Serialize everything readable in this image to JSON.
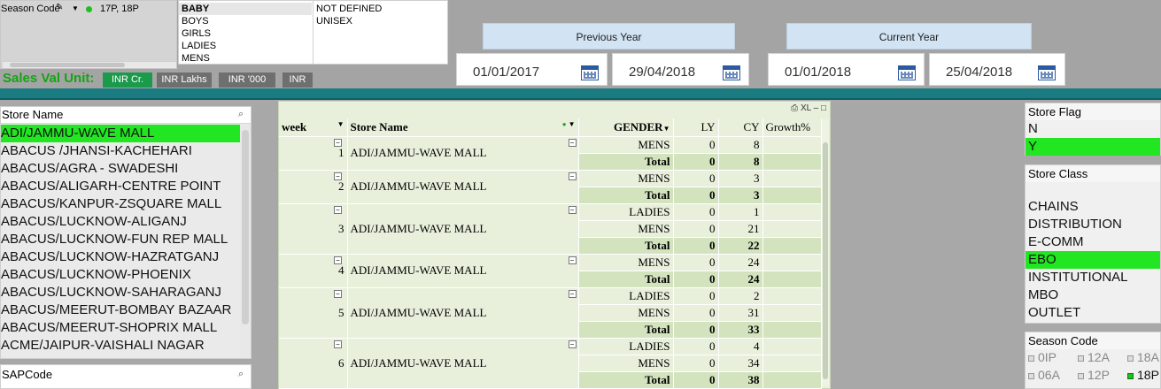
{
  "season": {
    "label": "Season Code",
    "icons": [
      "eraser-icon",
      "dropdown-icon"
    ],
    "value": "17P, 18P"
  },
  "gender_filter": {
    "col1": [
      {
        "label": "BABY",
        "selected": true
      },
      {
        "label": "BOYS",
        "selected": false
      },
      {
        "label": "GIRLS",
        "selected": false
      },
      {
        "label": "LADIES",
        "selected": false
      },
      {
        "label": "MENS",
        "selected": false
      }
    ],
    "col2": [
      {
        "label": "NOT DEFINED",
        "selected": false
      },
      {
        "label": "UNISEX",
        "selected": false
      }
    ]
  },
  "sales_unit": {
    "label": "Sales Val Unit:",
    "options": [
      {
        "label": "INR Cr.",
        "active": true
      },
      {
        "label": "INR Lakhs",
        "active": false
      },
      {
        "label": "INR '000",
        "active": false
      },
      {
        "label": "INR",
        "active": false
      }
    ]
  },
  "previous_year": {
    "label": "Previous Year",
    "from": "01/01/2017",
    "to": "29/04/2018"
  },
  "current_year": {
    "label": "Current Year",
    "from": "01/01/2018",
    "to": "25/04/2018"
  },
  "store_name_list": {
    "title": "Store Name",
    "items": [
      {
        "label": "ADI/JAMMU-WAVE MALL",
        "selected": true
      },
      {
        "label": "ABACUS /JHANSI-KACHEHARI",
        "selected": false
      },
      {
        "label": "ABACUS/AGRA - SWADESHI",
        "selected": false
      },
      {
        "label": "ABACUS/ALIGARH-CENTRE POINT",
        "selected": false
      },
      {
        "label": "ABACUS/KANPUR-ZSQUARE MALL",
        "selected": false
      },
      {
        "label": "ABACUS/LUCKNOW-ALIGANJ",
        "selected": false
      },
      {
        "label": "ABACUS/LUCKNOW-FUN REP MALL",
        "selected": false
      },
      {
        "label": "ABACUS/LUCKNOW-HAZRATGANJ",
        "selected": false
      },
      {
        "label": "ABACUS/LUCKNOW-PHOENIX",
        "selected": false
      },
      {
        "label": "ABACUS/LUCKNOW-SAHARAGANJ",
        "selected": false
      },
      {
        "label": "ABACUS/MEERUT-BOMBAY BAZAAR",
        "selected": false
      },
      {
        "label": "ABACUS/MEERUT-SHOPRIX MALL",
        "selected": false
      },
      {
        "label": "ACME/JAIPUR-VAISHALI NAGAR",
        "selected": false
      }
    ]
  },
  "sap_code": {
    "title": "SAPCode"
  },
  "pivot": {
    "toolbar": "XL",
    "headers": {
      "week": "week",
      "store": "Store Name",
      "gender": "GENDER",
      "ly": "LY",
      "cy": "CY",
      "growth": "Growth%"
    },
    "groups": [
      {
        "week": "1",
        "store": "ADI/JAMMU-WAVE MALL",
        "rows": [
          {
            "gender": "MENS",
            "ly": "0",
            "cy": "8"
          }
        ],
        "total": {
          "label": "Total",
          "ly": "0",
          "cy": "8"
        }
      },
      {
        "week": "2",
        "store": "ADI/JAMMU-WAVE MALL",
        "rows": [
          {
            "gender": "MENS",
            "ly": "0",
            "cy": "3"
          }
        ],
        "total": {
          "label": "Total",
          "ly": "0",
          "cy": "3"
        }
      },
      {
        "week": "3",
        "store": "ADI/JAMMU-WAVE MALL",
        "rows": [
          {
            "gender": "LADIES",
            "ly": "0",
            "cy": "1"
          },
          {
            "gender": "MENS",
            "ly": "0",
            "cy": "21"
          }
        ],
        "total": {
          "label": "Total",
          "ly": "0",
          "cy": "22"
        }
      },
      {
        "week": "4",
        "store": "ADI/JAMMU-WAVE MALL",
        "rows": [
          {
            "gender": "MENS",
            "ly": "0",
            "cy": "24"
          }
        ],
        "total": {
          "label": "Total",
          "ly": "0",
          "cy": "24"
        }
      },
      {
        "week": "5",
        "store": "ADI/JAMMU-WAVE MALL",
        "rows": [
          {
            "gender": "LADIES",
            "ly": "0",
            "cy": "2"
          },
          {
            "gender": "MENS",
            "ly": "0",
            "cy": "31"
          }
        ],
        "total": {
          "label": "Total",
          "ly": "0",
          "cy": "33"
        }
      },
      {
        "week": "6",
        "store": "ADI/JAMMU-WAVE MALL",
        "rows": [
          {
            "gender": "LADIES",
            "ly": "0",
            "cy": "4"
          },
          {
            "gender": "MENS",
            "ly": "0",
            "cy": "34"
          }
        ],
        "total": {
          "label": "Total",
          "ly": "0",
          "cy": "38"
        }
      }
    ]
  },
  "store_flag": {
    "title": "Store  Flag",
    "items": [
      {
        "label": "N",
        "selected": false
      },
      {
        "label": "Y",
        "selected": true
      }
    ]
  },
  "store_class": {
    "title": "Store Class",
    "items": [
      {
        "label": "CHAINS",
        "selected": false
      },
      {
        "label": "DISTRIBUTION",
        "selected": false
      },
      {
        "label": "E-COMM",
        "selected": false
      },
      {
        "label": "EBO",
        "selected": true
      },
      {
        "label": "INSTITUTIONAL",
        "selected": false
      },
      {
        "label": "MBO",
        "selected": false
      },
      {
        "label": "OUTLET",
        "selected": false
      }
    ]
  },
  "season_code_list": {
    "title": "Season Code",
    "items": [
      {
        "label": "0IP",
        "selected": false
      },
      {
        "label": "12A",
        "selected": false
      },
      {
        "label": "18A",
        "selected": false
      },
      {
        "label": "06A",
        "selected": false
      },
      {
        "label": "12P",
        "selected": false
      },
      {
        "label": "18P",
        "selected": true
      }
    ]
  },
  "colors": {
    "selection_green": "#22e622",
    "teal_bar": "#1a7c80",
    "sales_label_green": "#14a414",
    "active_unit": "#1a9a4a",
    "inactive_unit": "#6f6f6f",
    "pivot_bg": "#e8f0dc",
    "pivot_total_bg": "#d3e3bd"
  }
}
